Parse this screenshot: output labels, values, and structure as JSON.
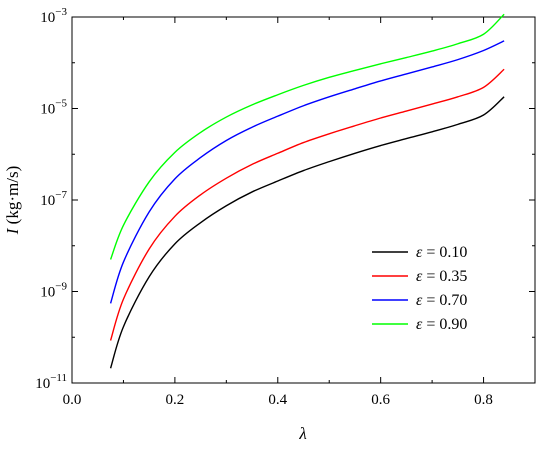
{
  "chart_data": {
    "type": "line",
    "title": "",
    "xlabel": "λ",
    "ylabel_var": "I",
    "ylabel_unit": " (kg·m/s)",
    "xlim": [
      0.0,
      0.9
    ],
    "ylim": [
      1e-11,
      0.001
    ],
    "yscale": "log",
    "grid": false,
    "legend_position": "lower-right",
    "x_ticks": [
      {
        "value": 0.0,
        "label": "0.0"
      },
      {
        "value": 0.2,
        "label": "0.2"
      },
      {
        "value": 0.4,
        "label": "0.4"
      },
      {
        "value": 0.6,
        "label": "0.6"
      },
      {
        "value": 0.8,
        "label": "0.8"
      }
    ],
    "y_ticks": [
      {
        "value": 1e-11,
        "base": "10",
        "exp": "−11"
      },
      {
        "value": 1e-09,
        "base": "10",
        "exp": "−9"
      },
      {
        "value": 1e-07,
        "base": "10",
        "exp": "−7"
      },
      {
        "value": 1e-05,
        "base": "10",
        "exp": "−5"
      },
      {
        "value": 0.001,
        "base": "10",
        "exp": "−3"
      }
    ],
    "x": [
      0.075,
      0.1,
      0.15,
      0.2,
      0.25,
      0.3,
      0.35,
      0.4,
      0.45,
      0.5,
      0.55,
      0.6,
      0.65,
      0.7,
      0.75,
      0.8,
      0.84
    ],
    "series": [
      {
        "name": "ε = 0.10",
        "legend_var": "ε",
        "legend_value": " = 0.10",
        "color": "#000000",
        "values": [
          2.1e-11,
          1.7e-10,
          2.1e-09,
          1.1e-08,
          3.2e-08,
          7.5e-08,
          1.5e-07,
          2.6e-07,
          4.4e-07,
          6.9e-07,
          1.05e-06,
          1.55e-06,
          2.2e-06,
          3.1e-06,
          4.5e-06,
          7.2e-06,
          1.8e-05
        ]
      },
      {
        "name": "ε = 0.35",
        "legend_var": "ε",
        "legend_value": " = 0.35",
        "color": "#ff0000",
        "values": [
          8.5e-11,
          6.8e-10,
          8.5e-09,
          4.4e-08,
          1.3e-07,
          3e-07,
          6e-07,
          1.05e-06,
          1.8e-06,
          2.8e-06,
          4.2e-06,
          6.2e-06,
          8.8e-06,
          1.25e-05,
          1.8e-05,
          2.9e-05,
          7.2e-05
        ]
      },
      {
        "name": "ε = 0.70",
        "legend_var": "ε",
        "legend_value": " = 0.70",
        "color": "#0000ff",
        "values": [
          5.5e-10,
          4.4e-09,
          5.5e-08,
          2.9e-07,
          8.5e-07,
          2e-06,
          3.9e-06,
          6.8e-06,
          1.15e-05,
          1.8e-05,
          2.7e-05,
          4e-05,
          5.7e-05,
          8.1e-05,
          0.000117,
          0.000185,
          0.0003
        ]
      },
      {
        "name": "ε = 0.90",
        "legend_var": "ε",
        "legend_value": " = 0.90",
        "color": "#00ff00",
        "values": [
          5e-09,
          2.8e-08,
          2.5e-07,
          1.1e-06,
          3e-06,
          6.5e-06,
          1.2e-05,
          2e-05,
          3.2e-05,
          4.8e-05,
          6.8e-05,
          9.5e-05,
          0.00013,
          0.00018,
          0.00026,
          0.00042,
          0.00115
        ]
      }
    ]
  }
}
